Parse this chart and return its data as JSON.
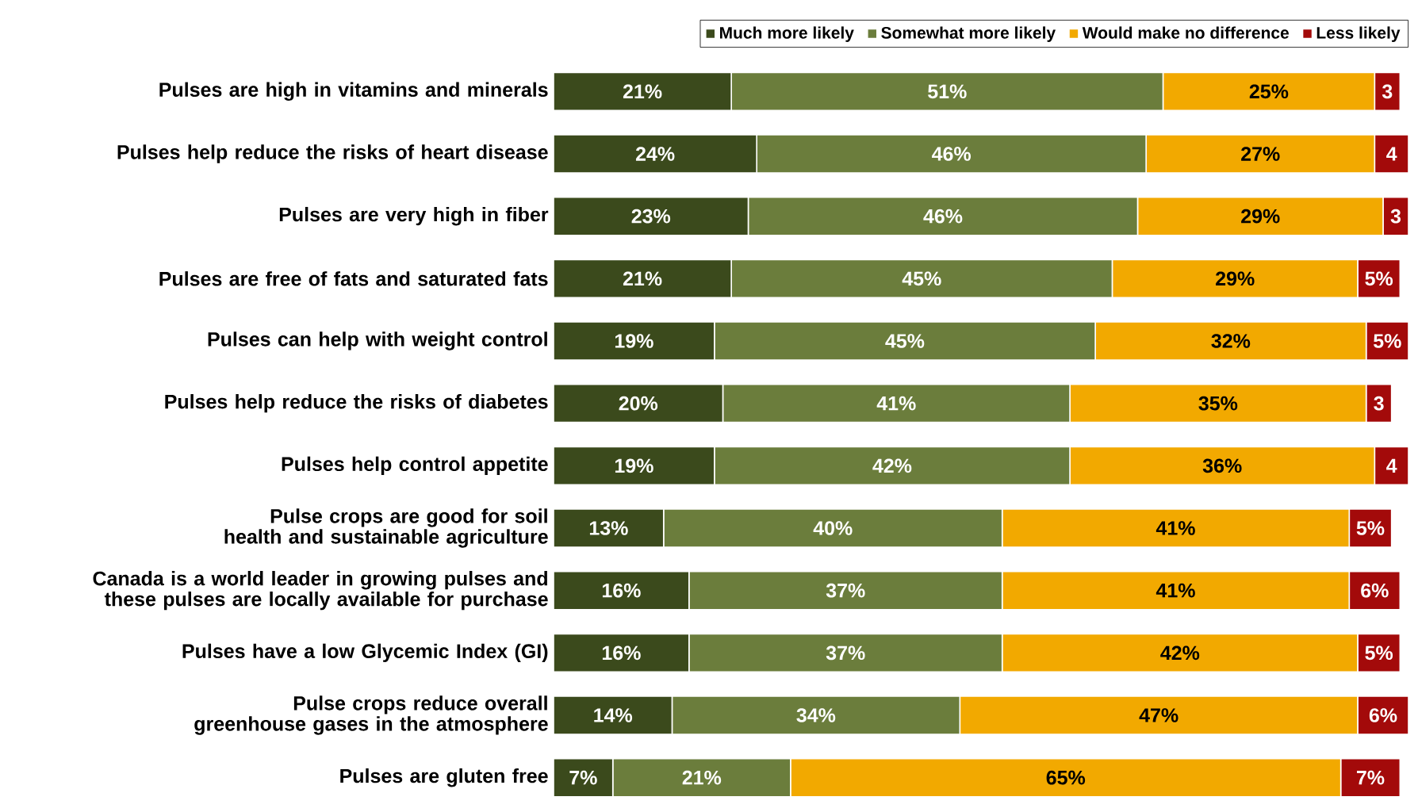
{
  "chart_data": {
    "type": "bar",
    "orientation": "horizontal",
    "stacked": true,
    "legend": "top right",
    "tick_labels": "y",
    "categories": [
      "Pulses are high in vitamins and minerals",
      "Pulses help reduce the risks of heart disease",
      "Pulses are very high in fiber",
      "Pulses are free of fats and saturated fats",
      "Pulses can help with weight control",
      "Pulses help reduce the risks of diabetes",
      "Pulses help control appetite",
      "Pulse crops are good for soil health and sustainable agriculture",
      "Canada is a world leader in growing pulses and these pulses are locally available for purchase",
      "Pulses have a low Glycemic Index (GI)",
      "Pulse crops reduce overall greenhouse gases in the atmosphere",
      "Pulses are gluten free"
    ],
    "series": [
      {
        "name": "Much more likely",
        "color": "#3b4a1c",
        "values": [
          21,
          24,
          23,
          21,
          19,
          20,
          19,
          13,
          16,
          16,
          14,
          7
        ],
        "value_labels": [
          "21%",
          "24%",
          "23%",
          "21%",
          "19%",
          "20%",
          "19%",
          "13%",
          "16%",
          "16%",
          "14%",
          "7%"
        ]
      },
      {
        "name": "Somewhat more likely",
        "color": "#6b7d3c",
        "values": [
          51,
          46,
          46,
          45,
          45,
          41,
          42,
          40,
          37,
          37,
          34,
          21
        ],
        "value_labels": [
          "51%",
          "46%",
          "46%",
          "45%",
          "45%",
          "41%",
          "42%",
          "40%",
          "37%",
          "37%",
          "34%",
          "21%"
        ]
      },
      {
        "name": "Would make no difference",
        "color": "#f2a900",
        "values": [
          25,
          27,
          29,
          29,
          32,
          35,
          36,
          41,
          41,
          42,
          47,
          65
        ],
        "value_labels": [
          "25%",
          "27%",
          "29%",
          "29%",
          "32%",
          "35%",
          "36%",
          "41%",
          "41%",
          "42%",
          "47%",
          "65%"
        ]
      },
      {
        "name": "Less likely",
        "color": "#a30a0a",
        "values": [
          3,
          4,
          3,
          5,
          5,
          3,
          4,
          5,
          6,
          5,
          6,
          7
        ],
        "value_labels": [
          "3",
          "4",
          "3",
          "5%",
          "5%",
          "3",
          "4",
          "5%",
          "6%",
          "5%",
          "6%",
          "7%"
        ]
      }
    ]
  }
}
